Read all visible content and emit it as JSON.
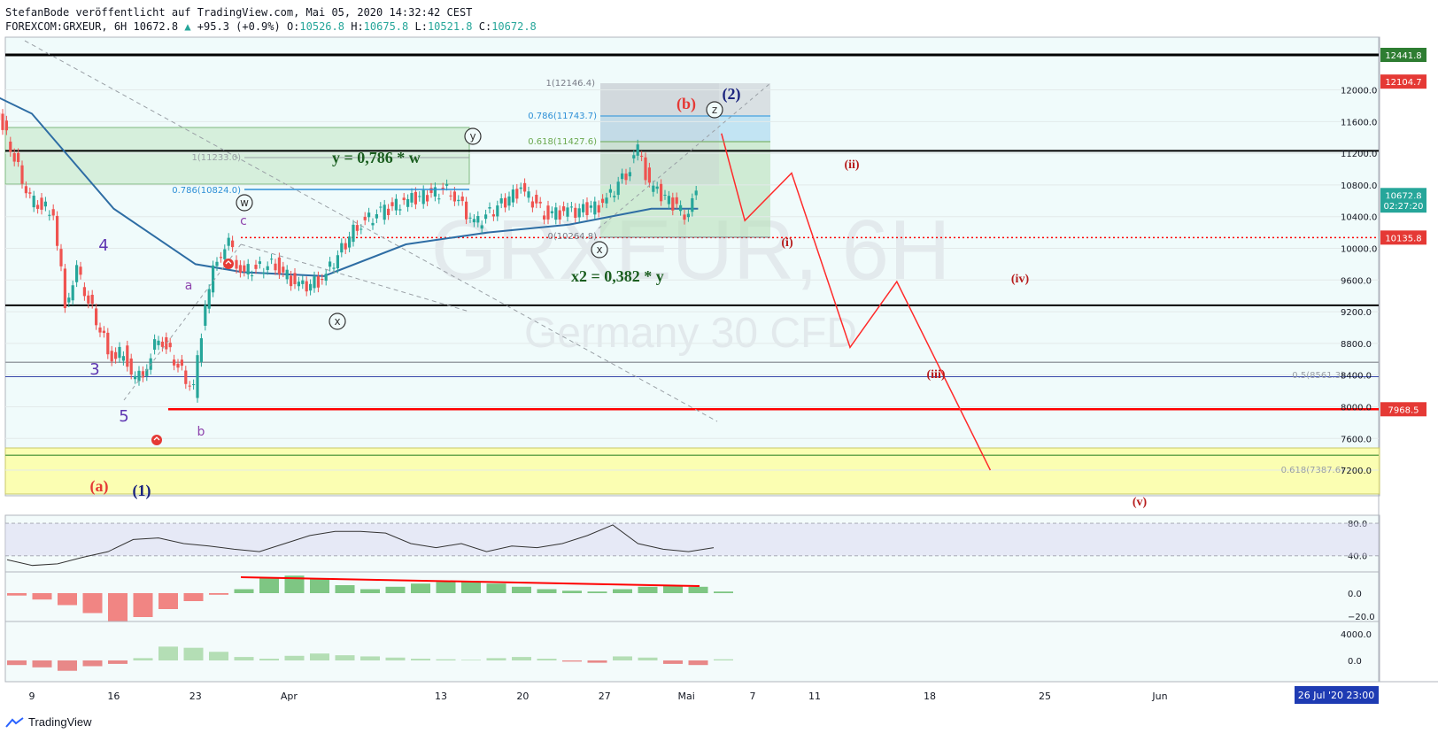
{
  "header": {
    "publisher_line": "StefanBode veröffentlicht auf TradingView.com, Mai 05, 2020 14:32:42 CEST",
    "symbol": "FOREXCOM:GRXEUR, 6H",
    "last": "10672.8",
    "change": "+95.3 (+0.9%)",
    "o_label": "O:",
    "o_val": "10526.8",
    "h_label": "H:",
    "h_val": "10675.8",
    "l_label": "L:",
    "l_val": "10521.8",
    "c_label": "C:",
    "c_val": "10672.8"
  },
  "watermark": {
    "symbol": "GRXEUR, 6H",
    "name": "Germany 30 CFD"
  },
  "footer": {
    "brand": "TradingView"
  },
  "colors": {
    "up": "#26a69a",
    "down": "#ef5350",
    "bg": "#f0fbfb",
    "line_red": "#ff0000",
    "ma_blue": "#2e6da4"
  },
  "chart_data": [
    {
      "type": "line",
      "title": "",
      "ylim": [
        7000,
        12500
      ],
      "x_ticks": [
        "9",
        "16",
        "23",
        "Apr",
        "13",
        "20",
        "27",
        "Mai",
        "7",
        "11",
        "18",
        "25",
        "Jun"
      ],
      "y_ticks": [
        "12000.0",
        "11600.0",
        "11200.0",
        "10800.0",
        "10400.0",
        "10000.0",
        "9600.0",
        "9200.0",
        "8800.0",
        "8400.0",
        "8000.0",
        "7600.0",
        "7200.0"
      ],
      "price_tags": [
        "12441.8",
        "12104.7",
        "10672.8",
        "02:27:20",
        "10135.8",
        "7968.5"
      ],
      "date_tag": "26 Jul '20  23:00",
      "horizontal_levels": [
        12441.8,
        11230,
        9280,
        8561.3,
        8380,
        7968.5,
        7387.6,
        10135.8
      ],
      "fib_labels": [
        "1(12146.4)",
        "0.786(11743.7)",
        "0.618(11427.6)",
        "0(10264.8)",
        "0.786(10824.0)",
        "1(11233.0)",
        "0.5(8561.3)",
        "0.618(7387.6)"
      ],
      "annotations": [
        "y = 0,786 * w",
        "x2 = 0,382 * y"
      ],
      "wave_labels": [
        "(a)",
        "(1)",
        "(b)",
        "(2)",
        "w",
        "x",
        "y",
        "z",
        "x",
        "a",
        "b",
        "c",
        "3",
        "4",
        "5",
        "(i)",
        "(ii)",
        "(iii)",
        "(iv)",
        "(v)"
      ],
      "price_series": [
        {
          "x": "Mar 04",
          "y": 12250
        },
        {
          "x": "Mar 06",
          "y": 11800
        },
        {
          "x": "Mar 09",
          "y": 10600
        },
        {
          "x": "Mar 11",
          "y": 10450
        },
        {
          "x": "Mar 12",
          "y": 9300
        },
        {
          "x": "Mar 13",
          "y": 9700
        },
        {
          "x": "Mar 16",
          "y": 8600
        },
        {
          "x": "Mar 17",
          "y": 8700
        },
        {
          "x": "Mar 18",
          "y": 8300
        },
        {
          "x": "Mar 19",
          "y": 8500
        },
        {
          "x": "Mar 20",
          "y": 8900
        },
        {
          "x": "Mar 23",
          "y": 8200
        },
        {
          "x": "Mar 24",
          "y": 9300
        },
        {
          "x": "Mar 25",
          "y": 9900
        },
        {
          "x": "Mar 26",
          "y": 10050
        },
        {
          "x": "Mar 27",
          "y": 9700
        },
        {
          "x": "Mar 30",
          "y": 9800
        },
        {
          "x": "Apr 01",
          "y": 9500
        },
        {
          "x": "Apr 03",
          "y": 9600
        },
        {
          "x": "Apr 06",
          "y": 10300
        },
        {
          "x": "Apr 08",
          "y": 10450
        },
        {
          "x": "Apr 10",
          "y": 10600
        },
        {
          "x": "Apr 14",
          "y": 10750
        },
        {
          "x": "Apr 16",
          "y": 10300
        },
        {
          "x": "Apr 20",
          "y": 10750
        },
        {
          "x": "Apr 22",
          "y": 10450
        },
        {
          "x": "Apr 24",
          "y": 10450
        },
        {
          "x": "Apr 27",
          "y": 10550
        },
        {
          "x": "Apr 29",
          "y": 10950
        },
        {
          "x": "Apr 30",
          "y": 11250
        },
        {
          "x": "May 01",
          "y": 10800
        },
        {
          "x": "May 04",
          "y": 10450
        },
        {
          "x": "May 05",
          "y": 10672.8
        }
      ],
      "moving_average": [
        {
          "x": "Mar 02",
          "y": 12200
        },
        {
          "x": "Mar 09",
          "y": 11700
        },
        {
          "x": "Mar 16",
          "y": 10500
        },
        {
          "x": "Mar 23",
          "y": 9800
        },
        {
          "x": "Mar 27",
          "y": 9700
        },
        {
          "x": "Apr 03",
          "y": 9650
        },
        {
          "x": "Apr 10",
          "y": 10050
        },
        {
          "x": "Apr 17",
          "y": 10200
        },
        {
          "x": "Apr 24",
          "y": 10300
        },
        {
          "x": "May 01",
          "y": 10500
        },
        {
          "x": "May 05",
          "y": 10500
        }
      ],
      "forecast_path": [
        {
          "x": "May 07",
          "y": 11450
        },
        {
          "x": "May 09",
          "y": 10350
        },
        {
          "x": "May 13",
          "y": 10950
        },
        {
          "x": "May 18",
          "y": 8750
        },
        {
          "x": "May 22",
          "y": 9580
        },
        {
          "x": "May 30",
          "y": 7200
        }
      ]
    },
    {
      "type": "line",
      "title": "RSI",
      "ylim": [
        20,
        90
      ],
      "y_ticks": [
        "80.0",
        "40.0"
      ],
      "series": [
        {
          "values": [
            35,
            28,
            30,
            38,
            45,
            60,
            62,
            55,
            52,
            48,
            45,
            55,
            65,
            70,
            70,
            68,
            55,
            50,
            55,
            45,
            52,
            50,
            55,
            65,
            78,
            55,
            48,
            45,
            50
          ]
        }
      ]
    },
    {
      "type": "bar",
      "title": "MACD",
      "y_ticks": [
        "0.0",
        "−20.0"
      ],
      "values": [
        -3,
        -8,
        -15,
        -25,
        -35,
        -30,
        -20,
        -10,
        -2,
        5,
        20,
        22,
        18,
        10,
        5,
        8,
        12,
        14,
        15,
        12,
        8,
        5,
        3,
        2,
        5,
        8,
        10,
        8,
        2
      ]
    },
    {
      "type": "bar",
      "title": "Volume oscillator",
      "y_ticks": [
        "4000.0",
        "0.0"
      ],
      "values": [
        -800,
        -1200,
        -1800,
        -1000,
        -600,
        400,
        2400,
        2200,
        1500,
        600,
        300,
        800,
        1200,
        900,
        700,
        500,
        300,
        200,
        100,
        400,
        600,
        300,
        -200,
        -400,
        700,
        500,
        -600,
        -800,
        200
      ]
    }
  ]
}
